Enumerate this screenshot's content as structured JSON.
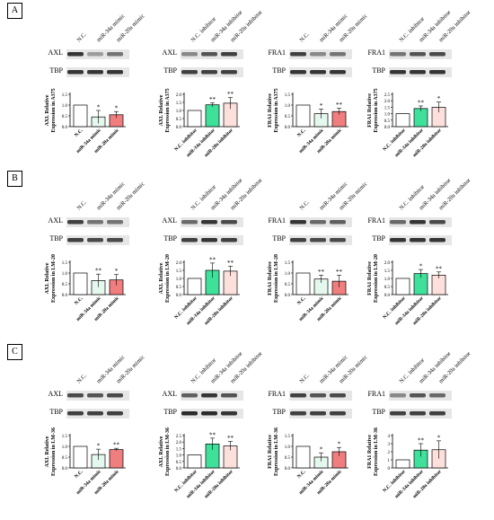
{
  "figure": {
    "sections": [
      {
        "label": "A",
        "panels": [
          {
            "lane_labels": [
              "N.C.",
              "miR-34a  mimic",
              "miR-20a  mimic"
            ],
            "blot_labels": [
              "AXL",
              "TBP"
            ],
            "band_intensity": [
              [
                0.85,
                0.35,
                0.55
              ],
              [
                0.85,
                0.85,
                0.85
              ]
            ],
            "chart_data": {
              "type": "bar",
              "ylabel": [
                "AXL Relative",
                "Expression in A375"
              ],
              "ylim": [
                0,
                1.5
              ],
              "yticks": [
                0.0,
                0.5,
                1.0,
                1.5
              ],
              "categories": [
                "N.C.",
                "miR-34a mimic",
                "miR-20a mimic"
              ],
              "values": [
                1.0,
                0.45,
                0.55
              ],
              "errors": [
                0.02,
                0.3,
                0.15
              ],
              "significance": [
                "",
                "*",
                "*"
              ]
            }
          },
          {
            "lane_labels": [
              "N.C. inhibitor",
              "miR-34a  inhibitor",
              "miR-20a  inhibitor"
            ],
            "blot_labels": [
              "AXL",
              "TBP"
            ],
            "band_intensity": [
              [
                0.45,
                0.7,
                0.8
              ],
              [
                0.8,
                0.8,
                0.8
              ]
            ],
            "chart_data": {
              "type": "bar",
              "ylabel": [
                "AXL Relative",
                "Expression in A375"
              ],
              "ylim": [
                0,
                2.0
              ],
              "yticks": [
                0.0,
                0.5,
                1.0,
                1.5,
                2.0
              ],
              "categories": [
                "N.C. inhibitor",
                "miR-34a inhibitor",
                "miR-20a inhibitor"
              ],
              "values": [
                1.0,
                1.35,
                1.45
              ],
              "errors": [
                0.02,
                0.12,
                0.35
              ],
              "significance": [
                "",
                "**",
                "**"
              ]
            }
          },
          {
            "lane_labels": [
              "N.C.",
              "miR-34a  mimic",
              "miR-20a  mimic"
            ],
            "blot_labels": [
              "FRA1",
              "TBP"
            ],
            "band_intensity": [
              [
                0.8,
                0.45,
                0.55
              ],
              [
                0.85,
                0.85,
                0.85
              ]
            ],
            "chart_data": {
              "type": "bar",
              "ylabel": [
                "FRA1 Relative",
                "Expression in A375"
              ],
              "ylim": [
                0,
                1.5
              ],
              "yticks": [
                0.0,
                0.5,
                1.0,
                1.5
              ],
              "categories": [
                "N.C.",
                "miR-34a mimic",
                "miR-20a mimic"
              ],
              "values": [
                1.0,
                0.6,
                0.7
              ],
              "errors": [
                0.02,
                0.22,
                0.15
              ],
              "significance": [
                "",
                "*",
                "**"
              ]
            }
          },
          {
            "lane_labels": [
              "N.C. inhibitor",
              "miR-34a  inhibitor",
              "miR-20a  inhibitor"
            ],
            "blot_labels": [
              "FRA1",
              "TBP"
            ],
            "band_intensity": [
              [
                0.55,
                0.7,
                0.75
              ],
              [
                0.85,
                0.85,
                0.85
              ]
            ],
            "chart_data": {
              "type": "bar",
              "ylabel": [
                "FRA1 Relative",
                "Expression in A375"
              ],
              "ylim": [
                0,
                2.5
              ],
              "yticks": [
                0.0,
                0.5,
                1.0,
                1.5,
                2.0,
                2.5
              ],
              "categories": [
                "N.C. inhibitor",
                "miR-34a inhibitor",
                "miR-20a inhibitor"
              ],
              "values": [
                1.0,
                1.4,
                1.5
              ],
              "errors": [
                0.02,
                0.2,
                0.4
              ],
              "significance": [
                "",
                "**",
                "*"
              ]
            }
          }
        ]
      },
      {
        "label": "B",
        "panels": [
          {
            "lane_labels": [
              "N.C.",
              "miR-34a  mimic",
              "miR-20a  mimic"
            ],
            "blot_labels": [
              "AXL",
              "TBP"
            ],
            "band_intensity": [
              [
                0.8,
                0.55,
                0.55
              ],
              [
                0.8,
                0.75,
                0.75
              ]
            ],
            "chart_data": {
              "type": "bar",
              "ylabel": [
                "AXL Relative",
                "Expression in LM-20"
              ],
              "ylim": [
                0,
                1.5
              ],
              "yticks": [
                0.0,
                0.5,
                1.0,
                1.5
              ],
              "categories": [
                "N.C.",
                "miR-34a mimic",
                "miR-20a mimic"
              ],
              "values": [
                1.0,
                0.65,
                0.68
              ],
              "errors": [
                0.02,
                0.3,
                0.25
              ],
              "significance": [
                "",
                "**",
                "*"
              ]
            }
          },
          {
            "lane_labels": [
              "N.C. inhibitor",
              "miR-34a  inhibitor",
              "miR-20a  inhibitor"
            ],
            "blot_labels": [
              "AXL",
              "TBP"
            ],
            "band_intensity": [
              [
                0.6,
                0.85,
                0.75
              ],
              [
                0.8,
                0.85,
                0.8
              ]
            ],
            "chart_data": {
              "type": "bar",
              "ylabel": [
                "AXL Relative",
                "Expression in LM-20"
              ],
              "ylim": [
                0,
                2.0
              ],
              "yticks": [
                0.0,
                0.5,
                1.0,
                1.5,
                2.0
              ],
              "categories": [
                "N.C. inhibitor",
                "miR-34a inhibitor",
                "miR-20a inhibitor"
              ],
              "values": [
                1.0,
                1.5,
                1.45
              ],
              "errors": [
                0.02,
                0.45,
                0.3
              ],
              "significance": [
                "",
                "**",
                "**"
              ]
            }
          },
          {
            "lane_labels": [
              "N.C.",
              "miR-34a  mimic",
              "miR-20a  mimic"
            ],
            "blot_labels": [
              "FRA1",
              "TBP"
            ],
            "band_intensity": [
              [
                0.85,
                0.6,
                0.65
              ],
              [
                0.8,
                0.75,
                0.75
              ]
            ],
            "chart_data": {
              "type": "bar",
              "ylabel": [
                "FRA1 Relative",
                "Expression in LM-20"
              ],
              "ylim": [
                0,
                1.5
              ],
              "yticks": [
                0.0,
                0.5,
                1.0,
                1.5
              ],
              "categories": [
                "N.C.",
                "miR-34a mimic",
                "miR-20a mimic"
              ],
              "values": [
                1.0,
                0.72,
                0.62
              ],
              "errors": [
                0.02,
                0.18,
                0.28
              ],
              "significance": [
                "",
                "**",
                "**"
              ]
            }
          },
          {
            "lane_labels": [
              "N.C. inhibitor",
              "miR-34a  inhibitor",
              "miR-20a  inhibitor"
            ],
            "blot_labels": [
              "FRA1",
              "TBP"
            ],
            "band_intensity": [
              [
                0.6,
                0.85,
                0.75
              ],
              [
                0.85,
                0.85,
                0.85
              ]
            ],
            "chart_data": {
              "type": "bar",
              "ylabel": [
                "FRA1 Relative",
                "Expression in LM-20"
              ],
              "ylim": [
                0,
                2.0
              ],
              "yticks": [
                0.0,
                0.5,
                1.0,
                1.5,
                2.0
              ],
              "categories": [
                "N.C. inhibitor",
                "miR-34a inhibitor",
                "miR-20a inhibitor"
              ],
              "values": [
                1.0,
                1.3,
                1.2
              ],
              "errors": [
                0.02,
                0.25,
                0.2
              ],
              "significance": [
                "",
                "*",
                "**"
              ]
            }
          }
        ]
      },
      {
        "label": "C",
        "panels": [
          {
            "lane_labels": [
              "N.C.",
              "miR-34a  mimic",
              "miR-20a  mimic"
            ],
            "blot_labels": [
              "AXL",
              "TBP"
            ],
            "band_intensity": [
              [
                0.75,
                0.7,
                0.75
              ],
              [
                0.8,
                0.8,
                0.8
              ]
            ],
            "chart_data": {
              "type": "bar",
              "ylabel": [
                "AXL Relative",
                "Expression in LM-36"
              ],
              "ylim": [
                0,
                1.5
              ],
              "yticks": [
                0.0,
                0.5,
                1.0,
                1.5
              ],
              "categories": [
                "N.C.",
                "miR-34a mimic",
                "miR-20a mimic"
              ],
              "values": [
                1.0,
                0.62,
                0.85
              ],
              "errors": [
                0.02,
                0.25,
                0.06
              ],
              "significance": [
                "",
                "*",
                "**"
              ]
            }
          },
          {
            "lane_labels": [
              "N.C. inhibitor",
              "miR-34a  inhibitor",
              "miR-20a  inhibitor"
            ],
            "blot_labels": [
              "AXL",
              "TBP"
            ],
            "band_intensity": [
              [
                0.65,
                0.85,
                0.7
              ],
              [
                0.9,
                0.9,
                0.85
              ]
            ],
            "chart_data": {
              "type": "bar",
              "ylabel": [
                "AXL Relative",
                "Expression in LM-36"
              ],
              "ylim": [
                0,
                2.5
              ],
              "yticks": [
                0.0,
                0.5,
                1.0,
                1.5,
                2.0,
                2.5
              ],
              "categories": [
                "N.C. inhibitor",
                "miR-34a inhibitor",
                "miR-20a inhibitor"
              ],
              "values": [
                1.0,
                1.85,
                1.7
              ],
              "errors": [
                0.02,
                0.45,
                0.35
              ],
              "significance": [
                "",
                "**",
                "**"
              ]
            }
          },
          {
            "lane_labels": [
              "N.C.",
              "miR-34a  mimic",
              "miR-20a  mimic"
            ],
            "blot_labels": [
              "FRA1",
              "TBP"
            ],
            "band_intensity": [
              [
                0.8,
                0.7,
                0.75
              ],
              [
                0.8,
                0.8,
                0.8
              ]
            ],
            "chart_data": {
              "type": "bar",
              "ylabel": [
                "FRA1 Relative",
                "Expression in LM-36"
              ],
              "ylim": [
                0,
                1.5
              ],
              "yticks": [
                0.0,
                0.5,
                1.0,
                1.5
              ],
              "categories": [
                "N.C.",
                "miR-34a mimic",
                "miR-20a mimic"
              ],
              "values": [
                1.0,
                0.5,
                0.75
              ],
              "errors": [
                0.02,
                0.2,
                0.2
              ],
              "significance": [
                "",
                "*",
                "*"
              ]
            }
          },
          {
            "lane_labels": [
              "N.C. inhibitor",
              "miR-34a  inhibitor",
              "miR-20a  inhibitor"
            ],
            "blot_labels": [
              "FRA1",
              "TBP"
            ],
            "band_intensity": [
              [
                0.45,
                0.7,
                0.6
              ],
              [
                0.8,
                0.8,
                0.8
              ]
            ],
            "chart_data": {
              "type": "bar",
              "ylabel": [
                "FRA1 Relative",
                "Expression in LM-36"
              ],
              "ylim": [
                0,
                4
              ],
              "yticks": [
                0,
                1,
                2,
                3,
                4
              ],
              "categories": [
                "N.C. inhibitor",
                "miR-34a inhibitor",
                "miR-20a inhibitor"
              ],
              "values": [
                1.0,
                2.2,
                2.25
              ],
              "errors": [
                0.02,
                0.8,
                1.1
              ],
              "significance": [
                "",
                "**",
                "*"
              ]
            }
          }
        ]
      }
    ],
    "colors": {
      "nc_fill": "#ffffff",
      "mir34a_mimic_fill": "#e4f8ee",
      "mir20a_mimic_fill": "#f07e7e",
      "mir34a_inhibitor_fill": "#3fe09a",
      "mir20a_inhibitor_fill": "#fde0dc",
      "bar_stroke": "#000000",
      "band_dark": "#1a1a1a",
      "band_background": "#e6e6e6"
    }
  }
}
